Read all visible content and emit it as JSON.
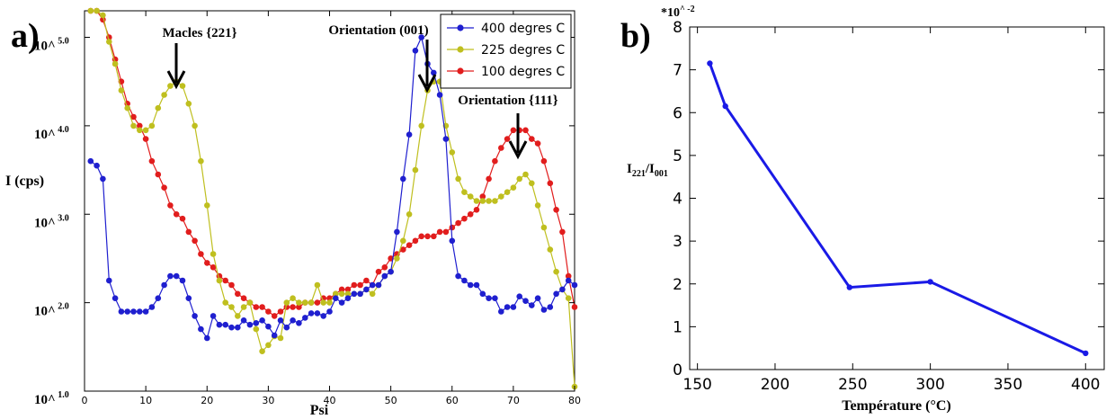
{
  "chart_data": [
    {
      "type": "line",
      "panel_label": "a)",
      "xlabel": "Psi",
      "ylabel": "I (cps)",
      "xlim": [
        0,
        80
      ],
      "ylim": [
        1.0,
        5.3
      ],
      "log_y": true,
      "x_ticks": [
        0,
        10,
        20,
        30,
        40,
        50,
        60,
        70,
        80
      ],
      "y_ticks": [
        {
          "value": 1.0,
          "base": "10^",
          "exp": "1.0"
        },
        {
          "value": 2.0,
          "base": "10^",
          "exp": "2.0"
        },
        {
          "value": 3.0,
          "base": "10^",
          "exp": "3.0"
        },
        {
          "value": 4.0,
          "base": "10^",
          "exp": "4.0"
        },
        {
          "value": 5.0,
          "base": "10^",
          "exp": "5.0"
        }
      ],
      "grid": false,
      "legend_position": "top-right",
      "series": [
        {
          "name": "400 degres C",
          "color": "#1f1fcf",
          "x": [
            1,
            2,
            3,
            4,
            5,
            6,
            7,
            8,
            9,
            10,
            11,
            12,
            13,
            14,
            15,
            16,
            17,
            18,
            19,
            20,
            21,
            22,
            23,
            24,
            25,
            26,
            27,
            28,
            29,
            30,
            31,
            32,
            33,
            34,
            35,
            36,
            37,
            38,
            39,
            40,
            41,
            42,
            43,
            44,
            45,
            46,
            47,
            48,
            49,
            50,
            51,
            52,
            53,
            54,
            55,
            56,
            57,
            58,
            59,
            60,
            61,
            62,
            63,
            64,
            65,
            66,
            67,
            68,
            69,
            70,
            71,
            72,
            73,
            74,
            75,
            76,
            77,
            78,
            79,
            80
          ],
          "y": [
            3.6,
            3.55,
            3.4,
            2.25,
            2.05,
            1.9,
            1.9,
            1.9,
            1.9,
            1.9,
            1.95,
            2.05,
            2.2,
            2.3,
            2.3,
            2.25,
            2.05,
            1.85,
            1.7,
            1.6,
            1.85,
            1.75,
            1.75,
            1.72,
            1.72,
            1.8,
            1.75,
            1.77,
            1.8,
            1.73,
            1.63,
            1.8,
            1.72,
            1.8,
            1.77,
            1.83,
            1.88,
            1.88,
            1.85,
            1.9,
            2.05,
            2.0,
            2.05,
            2.1,
            2.1,
            2.15,
            2.2,
            2.2,
            2.3,
            2.35,
            2.8,
            3.4,
            3.9,
            4.85,
            5.0,
            4.7,
            4.6,
            4.35,
            3.85,
            2.7,
            2.3,
            2.25,
            2.2,
            2.2,
            2.1,
            2.05,
            2.05,
            1.9,
            1.95,
            1.95,
            2.07,
            2.02,
            1.97,
            2.05,
            1.92,
            1.95,
            2.1,
            2.15,
            2.25,
            2.2
          ]
        },
        {
          "name": "225 degres C",
          "color": "#bfbf1f",
          "x": [
            1,
            2,
            3,
            4,
            5,
            6,
            7,
            8,
            9,
            10,
            11,
            12,
            13,
            14,
            15,
            16,
            17,
            18,
            19,
            20,
            21,
            22,
            23,
            24,
            25,
            26,
            27,
            28,
            29,
            30,
            31,
            32,
            33,
            34,
            35,
            36,
            37,
            38,
            39,
            40,
            41,
            42,
            43,
            44,
            45,
            46,
            47,
            48,
            49,
            50,
            51,
            52,
            53,
            54,
            55,
            56,
            57,
            58,
            59,
            60,
            61,
            62,
            63,
            64,
            65,
            66,
            67,
            68,
            69,
            70,
            71,
            72,
            73,
            74,
            75,
            76,
            77,
            78,
            79,
            80
          ],
          "y": [
            5.45,
            5.35,
            5.25,
            4.95,
            4.7,
            4.4,
            4.2,
            4.0,
            3.95,
            3.95,
            4.0,
            4.2,
            4.35,
            4.45,
            4.5,
            4.45,
            4.25,
            4.0,
            3.6,
            3.1,
            2.55,
            2.25,
            2.0,
            1.95,
            1.85,
            1.95,
            2.0,
            1.7,
            1.45,
            1.52,
            1.62,
            1.6,
            2.0,
            2.05,
            2.0,
            2.0,
            2.0,
            2.2,
            2.0,
            2.0,
            2.1,
            2.1,
            2.1,
            2.1,
            2.1,
            2.15,
            2.1,
            2.2,
            2.3,
            2.35,
            2.5,
            2.7,
            3.0,
            3.5,
            4.0,
            4.4,
            4.5,
            4.5,
            4.0,
            3.7,
            3.4,
            3.25,
            3.2,
            3.15,
            3.15,
            3.15,
            3.15,
            3.2,
            3.25,
            3.3,
            3.4,
            3.45,
            3.35,
            3.1,
            2.85,
            2.6,
            2.35,
            2.15,
            2.05,
            1.05
          ]
        },
        {
          "name": "100 degres C",
          "color": "#e11d1d",
          "x": [
            1,
            2,
            3,
            4,
            5,
            6,
            7,
            8,
            9,
            10,
            11,
            12,
            13,
            14,
            15,
            16,
            17,
            18,
            19,
            20,
            21,
            22,
            23,
            24,
            25,
            26,
            27,
            28,
            29,
            30,
            31,
            32,
            33,
            34,
            35,
            36,
            37,
            38,
            39,
            40,
            41,
            42,
            43,
            44,
            45,
            46,
            47,
            48,
            49,
            50,
            51,
            52,
            53,
            54,
            55,
            56,
            57,
            58,
            59,
            60,
            61,
            62,
            63,
            64,
            65,
            66,
            67,
            68,
            69,
            70,
            71,
            72,
            73,
            74,
            75,
            76,
            77,
            78,
            79,
            80
          ],
          "y": [
            5.5,
            5.4,
            5.2,
            5.0,
            4.75,
            4.5,
            4.25,
            4.1,
            4.0,
            3.85,
            3.6,
            3.45,
            3.3,
            3.1,
            3.0,
            2.95,
            2.8,
            2.7,
            2.55,
            2.45,
            2.4,
            2.3,
            2.25,
            2.2,
            2.1,
            2.05,
            2.0,
            1.95,
            1.95,
            1.9,
            1.85,
            1.9,
            1.95,
            1.95,
            1.95,
            2.0,
            2.0,
            2.0,
            2.05,
            2.05,
            2.1,
            2.15,
            2.15,
            2.2,
            2.2,
            2.25,
            2.2,
            2.35,
            2.4,
            2.5,
            2.55,
            2.6,
            2.65,
            2.7,
            2.75,
            2.75,
            2.75,
            2.8,
            2.8,
            2.85,
            2.9,
            2.95,
            3.0,
            3.05,
            3.2,
            3.4,
            3.6,
            3.75,
            3.85,
            3.95,
            3.95,
            3.95,
            3.85,
            3.8,
            3.6,
            3.35,
            3.05,
            2.8,
            2.3,
            1.95
          ]
        }
      ],
      "annotations": [
        {
          "text": "Macles {221}",
          "x": 15
        },
        {
          "text": "Orientation (001)",
          "x": 55
        },
        {
          "text": "Orientation {111}",
          "x": 71
        }
      ]
    },
    {
      "type": "line",
      "panel_label": "b)",
      "xlabel": "Température (°C)",
      "ylabel_main": "I",
      "ylabel_sub1": "221",
      "ylabel_mid": "/I",
      "ylabel_sub2": "001",
      "scale_label": "*10",
      "scale_exp": "^ -2",
      "xlim": [
        145,
        412
      ],
      "ylim": [
        0,
        8
      ],
      "x_ticks": [
        150,
        200,
        250,
        300,
        350,
        400
      ],
      "y_ticks": [
        0,
        1,
        2,
        3,
        4,
        5,
        6,
        7,
        8
      ],
      "grid": false,
      "series": [
        {
          "name": "",
          "color": "#1a1ae6",
          "x": [
            158,
            168,
            248,
            300,
            400
          ],
          "y": [
            7.15,
            6.15,
            1.92,
            2.05,
            0.38
          ]
        }
      ]
    }
  ]
}
